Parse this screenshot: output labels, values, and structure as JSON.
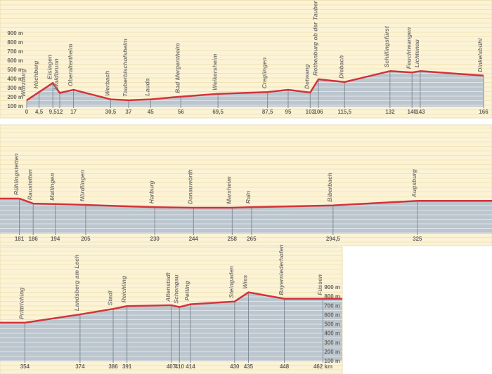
{
  "chart_data": [
    {
      "type": "line",
      "color": "#d2333b",
      "x": [
        0,
        4.5,
        9.5,
        12,
        17,
        30.5,
        37,
        45,
        56,
        69.5,
        87.5,
        95,
        103,
        106,
        115.5,
        132,
        140,
        143,
        166
      ],
      "values": [
        170,
        260,
        360,
        250,
        285,
        180,
        170,
        180,
        210,
        240,
        260,
        285,
        255,
        400,
        370,
        490,
        475,
        490,
        440
      ],
      "point_labels": [
        "Würzburg",
        "Höchberg",
        "Eisingen",
        "Waldbrunn",
        "Oberaltertheim",
        "Werbach",
        "Tauberbischofsheim",
        "Lauda",
        "Bad Mergentheim",
        "Weikersheim",
        "Creglingen",
        null,
        "Detwang",
        "Rothenburg ob der Tauber",
        "Diebach",
        "Schillingsfürst",
        "Feuchtwangen",
        "Lichtenau",
        "Dinkelsbühl"
      ],
      "xlim": [
        0,
        166
      ],
      "xticks": [
        0,
        {
          "value": 4.5,
          "label": "4,5"
        },
        {
          "value": 9.5,
          "label": "9,5"
        },
        12,
        17,
        {
          "value": 30.5,
          "label": "30,5"
        },
        37,
        45,
        56,
        {
          "value": 69.5,
          "label": "69,5"
        },
        {
          "value": 87.5,
          "label": "87,5"
        },
        95,
        103,
        106,
        {
          "value": 115.5,
          "label": "115,5"
        },
        132,
        140,
        143,
        166
      ],
      "ylim": [
        100,
        900
      ],
      "yticks": [
        {
          "value": 100,
          "label": "100 m"
        },
        {
          "value": 200,
          "label": "200 m"
        },
        {
          "value": 300,
          "label": "300 m"
        },
        {
          "value": 400,
          "label": "400 m"
        },
        {
          "value": 500,
          "label": "500 m"
        },
        {
          "value": 600,
          "label": "600 m"
        },
        {
          "value": 700,
          "label": "700 m"
        },
        {
          "value": 800,
          "label": "800 m"
        },
        {
          "value": 900,
          "label": "900 m"
        }
      ]
    },
    {
      "type": "line",
      "color": "#d2333b",
      "x": [
        181,
        186,
        194,
        205,
        230,
        244,
        258,
        265,
        294.5,
        325
      ],
      "values": [
        485,
        430,
        425,
        415,
        390,
        385,
        385,
        390,
        410,
        460
      ],
      "point_labels": [
        "Rühlingstetten",
        "Raustetten",
        "Mailingen",
        "Nördlingen",
        "Harburg",
        "Donauwörth",
        "Marxheim",
        "Rain",
        "Biberbach",
        "Augsburg"
      ],
      "xlim": [
        174,
        352
      ],
      "xticks": [
        181,
        186,
        194,
        205,
        230,
        244,
        258,
        265,
        {
          "value": 294.5,
          "label": "294,5"
        },
        325
      ],
      "ylim": [
        100,
        900
      ]
    },
    {
      "type": "line",
      "color": "#d2333b",
      "x": [
        354,
        374,
        386,
        391,
        407,
        410,
        414,
        430,
        435,
        448,
        462
      ],
      "values": [
        520,
        610,
        670,
        700,
        710,
        690,
        720,
        750,
        850,
        780,
        780
      ],
      "point_labels": [
        "Prittriching",
        "Landsberg am Lech",
        "Stadl",
        "Reichling",
        "Altenstadt",
        "Schongau",
        "Peiting",
        "Steingaden",
        "Wies",
        "Bayerniederhofen",
        "Füssen"
      ],
      "xlim": [
        345,
        469
      ],
      "xticks": [
        354,
        374,
        386,
        391,
        407,
        410,
        414,
        430,
        435,
        448,
        {
          "value": 462,
          "label": "462 km"
        }
      ],
      "ylim": [
        100,
        900
      ],
      "yticks": [
        {
          "value": 100,
          "label": "100 m"
        },
        {
          "value": 200,
          "label": "200 m"
        },
        {
          "value": 300,
          "label": "300 m"
        },
        {
          "value": 400,
          "label": "400 m"
        },
        {
          "value": 500,
          "label": "500 m"
        },
        {
          "value": 600,
          "label": "600 m"
        },
        {
          "value": 700,
          "label": "700 m"
        },
        {
          "value": 800,
          "label": "800 m"
        },
        {
          "value": 900,
          "label": "900 m"
        }
      ]
    }
  ]
}
